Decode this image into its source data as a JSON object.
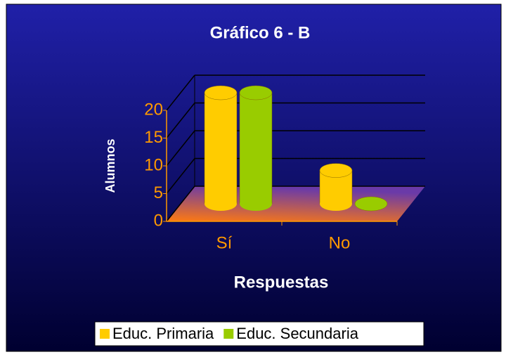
{
  "chart_data": {
    "type": "bar3d",
    "title": "Gráfico 6 - B",
    "x_label": "Respuestas",
    "y_label": "Alumnos",
    "categories": [
      "Sí",
      "No"
    ],
    "series": [
      {
        "name": "Educ. Primaria",
        "color": "#ffcc00",
        "values": [
          20,
          6
        ]
      },
      {
        "name": "Educ. Secundaria",
        "color": "#99cc00",
        "values": [
          20,
          0
        ]
      }
    ],
    "ylim": [
      0,
      20
    ],
    "yticks": [
      0,
      5,
      10,
      15,
      20
    ],
    "grid": true,
    "legend": "bottom"
  }
}
